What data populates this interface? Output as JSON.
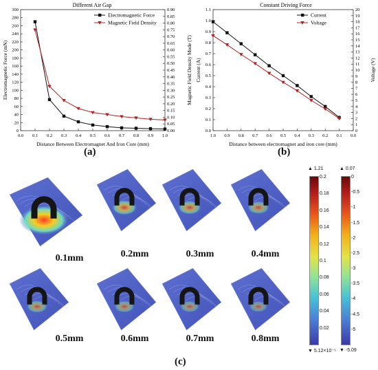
{
  "chart_data": [
    {
      "type": "line",
      "title": "Different Air Gap",
      "xlabel": "Distance Between Electromagnet And Iron Core (mm)",
      "ylabel": "Electromagnetic Force (mN)",
      "y2label": "Magnetic Field Density Mode (T)",
      "x": [
        0.1,
        0.2,
        0.3,
        0.4,
        0.5,
        0.6,
        0.7,
        0.8,
        0.9,
        1.0
      ],
      "xlim": [
        0.0,
        1.0
      ],
      "xticks": [
        "0.0",
        "0.1",
        "0.2",
        "0.3",
        "0.4",
        "0.5",
        "0.6",
        "0.7",
        "0.8",
        "0.9",
        "1.0"
      ],
      "ylim": [
        0,
        300
      ],
      "yticks": [
        "0",
        "20",
        "40",
        "60",
        "80",
        "100",
        "120",
        "140",
        "160",
        "180",
        "200",
        "220",
        "240",
        "260",
        "280",
        "300"
      ],
      "y2lim": [
        0,
        0.9
      ],
      "y2ticks": [
        "0.00",
        "0.05",
        "0.10",
        "0.15",
        "0.20",
        "0.25",
        "0.30",
        "0.35",
        "0.40",
        "0.45",
        "0.50",
        "0.55",
        "0.60",
        "0.65",
        "0.70",
        "0.75",
        "0.80",
        "0.85",
        "0.90"
      ],
      "legend": "top-right",
      "series": [
        {
          "name": "Electromagnetic Force",
          "axis": "left",
          "color": "#111111",
          "marker": "square",
          "values": [
            270,
            77,
            36,
            22,
            14,
            10,
            7,
            6,
            5,
            4
          ]
        },
        {
          "name": "Magnetic Field Density",
          "axis": "right",
          "color": "#b22222",
          "marker": "triangle-down",
          "values": [
            0.75,
            0.33,
            0.225,
            0.165,
            0.135,
            0.12,
            0.105,
            0.095,
            0.085,
            0.08
          ]
        }
      ],
      "panel_label": "(a)"
    },
    {
      "type": "line",
      "title": "Constant Driving Force",
      "xlabel": "Distance between electromagnet and iron core (mm)",
      "ylabel": "Current (A)",
      "y2label": "Voltage (V)",
      "x": [
        1.0,
        0.9,
        0.8,
        0.7,
        0.6,
        0.5,
        0.4,
        0.3,
        0.2,
        0.1
      ],
      "xlim": [
        1.0,
        0.0
      ],
      "xticks": [
        "1.0",
        "0.9",
        "0.8",
        "0.7",
        "0.6",
        "0.5",
        "0.4",
        "0.3",
        "0.2",
        "0.1",
        "0.0"
      ],
      "ylim": [
        0,
        1.1
      ],
      "yticks": [
        "0.0",
        "0.1",
        "0.2",
        "0.3",
        "0.4",
        "0.5",
        "0.6",
        "0.7",
        "0.8",
        "0.9",
        "1.0",
        "1.1"
      ],
      "y2lim": [
        0,
        20
      ],
      "y2ticks": [
        "0",
        "1",
        "2",
        "3",
        "4",
        "5",
        "6",
        "7",
        "8",
        "9",
        "10",
        "11",
        "12",
        "13",
        "14",
        "15",
        "16",
        "17",
        "18",
        "19",
        "20"
      ],
      "legend": "top-right",
      "series": [
        {
          "name": "Current",
          "axis": "left",
          "color": "#111111",
          "marker": "square",
          "values": [
            0.99,
            0.89,
            0.79,
            0.69,
            0.59,
            0.5,
            0.41,
            0.31,
            0.22,
            0.12
          ]
        },
        {
          "name": "Voltage",
          "axis": "right",
          "color": "#b22222",
          "marker": "triangle-down",
          "values": [
            15.7,
            14.2,
            12.6,
            11.1,
            9.5,
            8.0,
            6.6,
            5.0,
            3.6,
            2.0
          ]
        }
      ],
      "panel_label": "(b)"
    }
  ],
  "figure_c": {
    "panel_label": "(c)",
    "tiles": [
      "0.1mm",
      "0.2mm",
      "0.3mm",
      "0.4mm",
      "0.5mm",
      "0.6mm",
      "0.7mm",
      "0.8mm"
    ],
    "hotspot_intensity": [
      1.0,
      0.55,
      0.45,
      0.35,
      0.3,
      0.25,
      0.2,
      0.15
    ],
    "colorbar_left": {
      "top_label": "▲ 1.21",
      "bottom_label": "▼ 5.12×10⁻⁵",
      "ticks": [
        "0.2",
        "0.18",
        "0.16",
        "0.14",
        "0.12",
        "0.1",
        "0.08",
        "0.06",
        "0.04",
        "0.02"
      ]
    },
    "colorbar_right": {
      "top_label": "▲ 0.07",
      "bottom_label": "▼ -5.09",
      "ticks": [
        "0",
        "-0.5",
        "-1",
        "-1.5",
        "-2",
        "-2.5",
        "-3",
        "-3.5",
        "-4",
        "-4.5",
        "-5"
      ]
    }
  }
}
